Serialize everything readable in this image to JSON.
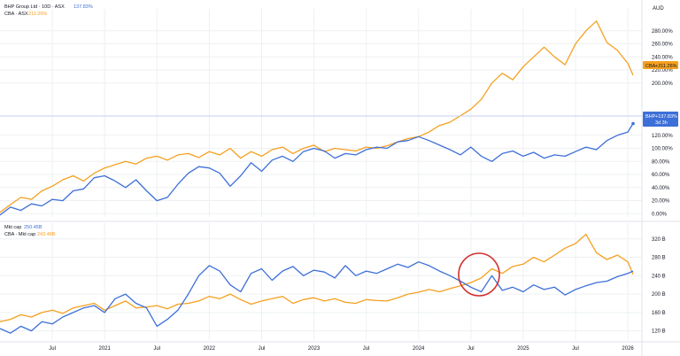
{
  "legend_top": {
    "bhp_label": "BHP Group Ltd · 10D · ASX",
    "bhp_value": "137.83%",
    "cba_label": "CBA · ASX",
    "cba_value": "211.26%"
  },
  "legend_bottom": {
    "bhp_label": "Mkt cap",
    "bhp_value": "250.45B",
    "cba_label": "CBA · Mkt cap",
    "cba_value": "243.46B"
  },
  "price_tags": {
    "cba_name": "CBA",
    "cba_value": "+211.26%",
    "bhp_name": "BHP",
    "bhp_value": "+137.83%",
    "bhp_time": "3d 3h"
  },
  "colors": {
    "bhp": "#3d6fd8",
    "cba": "#f5a01f",
    "grid": "#eef0f3",
    "highlight_circle": "#d32f2f",
    "text": "#131722"
  },
  "chart_data": [
    {
      "type": "line",
      "title": "",
      "unit_label": "AUD",
      "x_tick_labels": [
        "Jul",
        "2021",
        "Jul",
        "2022",
        "Jul",
        "2023",
        "Jul",
        "2024",
        "Jul",
        "2025",
        "Jul",
        "2026"
      ],
      "x_tick_dates": [
        2020.5,
        2021.0,
        2021.5,
        2022.0,
        2022.5,
        2023.0,
        2023.5,
        2024.0,
        2024.5,
        2025.0,
        2025.5,
        2026.0
      ],
      "xlim": [
        2020.0,
        2026.05
      ],
      "y_ticks": [
        0,
        20,
        40,
        60,
        80,
        100,
        120,
        200,
        220,
        240,
        260,
        280
      ],
      "y_tick_labels": [
        "0.00%",
        "20.00%",
        "40.00%",
        "60.00%",
        "80.00%",
        "100.00%",
        "120.00%",
        "200.00%",
        "220.00%",
        "240.00%",
        "260.00%",
        "280.00%"
      ],
      "ylim": [
        -5,
        300
      ],
      "grid": true,
      "legend_position": "top-left",
      "series": [
        {
          "name": "CBA",
          "color": "#f5a01f",
          "x": [
            2020.0,
            2020.1,
            2020.2,
            2020.3,
            2020.4,
            2020.5,
            2020.6,
            2020.7,
            2020.8,
            2020.9,
            2021.0,
            2021.1,
            2021.2,
            2021.3,
            2021.4,
            2021.5,
            2021.6,
            2021.7,
            2021.8,
            2021.9,
            2022.0,
            2022.1,
            2022.2,
            2022.3,
            2022.4,
            2022.5,
            2022.6,
            2022.7,
            2022.8,
            2022.9,
            2023.0,
            2023.1,
            2023.2,
            2023.3,
            2023.4,
            2023.5,
            2023.6,
            2023.7,
            2023.8,
            2023.9,
            2024.0,
            2024.1,
            2024.2,
            2024.3,
            2024.4,
            2024.5,
            2024.6,
            2024.7,
            2024.8,
            2024.9,
            2025.0,
            2025.1,
            2025.2,
            2025.3,
            2025.4,
            2025.5,
            2025.6,
            2025.7,
            2025.8,
            2025.9,
            2026.0,
            2026.05
          ],
          "y": [
            2,
            14,
            25,
            22,
            35,
            42,
            52,
            58,
            50,
            62,
            70,
            75,
            80,
            76,
            85,
            88,
            82,
            90,
            92,
            86,
            95,
            90,
            100,
            85,
            95,
            88,
            98,
            102,
            92,
            100,
            105,
            95,
            100,
            98,
            96,
            102,
            100,
            104,
            110,
            115,
            118,
            125,
            135,
            140,
            150,
            160,
            175,
            200,
            215,
            205,
            225,
            240,
            255,
            240,
            228,
            260,
            280,
            295,
            262,
            250,
            230,
            212
          ],
          "labels": [
            "0%",
            "+211.26%"
          ]
        },
        {
          "name": "BHP",
          "color": "#3d6fd8",
          "x": [
            2020.0,
            2020.1,
            2020.2,
            2020.3,
            2020.4,
            2020.5,
            2020.6,
            2020.7,
            2020.8,
            2020.9,
            2021.0,
            2021.1,
            2021.2,
            2021.3,
            2021.4,
            2021.5,
            2021.6,
            2021.7,
            2021.8,
            2021.9,
            2022.0,
            2022.1,
            2022.2,
            2022.3,
            2022.4,
            2022.5,
            2022.6,
            2022.7,
            2022.8,
            2022.9,
            2023.0,
            2023.1,
            2023.2,
            2023.3,
            2023.4,
            2023.5,
            2023.6,
            2023.7,
            2023.8,
            2023.9,
            2024.0,
            2024.1,
            2024.2,
            2024.3,
            2024.4,
            2024.5,
            2024.6,
            2024.7,
            2024.8,
            2024.9,
            2025.0,
            2025.1,
            2025.2,
            2025.3,
            2025.4,
            2025.5,
            2025.6,
            2025.7,
            2025.8,
            2025.9,
            2026.0,
            2026.05
          ],
          "y": [
            -2,
            10,
            5,
            15,
            12,
            22,
            20,
            35,
            38,
            55,
            58,
            50,
            40,
            52,
            35,
            20,
            25,
            45,
            62,
            72,
            70,
            62,
            42,
            58,
            78,
            65,
            82,
            88,
            80,
            95,
            100,
            96,
            85,
            92,
            90,
            98,
            102,
            100,
            110,
            112,
            118,
            112,
            105,
            98,
            90,
            102,
            88,
            80,
            92,
            96,
            88,
            94,
            85,
            90,
            88,
            95,
            102,
            98,
            112,
            120,
            125,
            138
          ]
        }
      ]
    },
    {
      "type": "line",
      "title": "",
      "x_tick_labels": [
        "Jul",
        "2021",
        "Jul",
        "2022",
        "Jul",
        "2023",
        "Jul",
        "2024",
        "Jul",
        "2025",
        "Jul",
        "2026"
      ],
      "x_tick_dates": [
        2020.5,
        2021.0,
        2021.5,
        2022.0,
        2022.5,
        2023.0,
        2023.5,
        2024.0,
        2024.5,
        2025.0,
        2025.5,
        2026.0
      ],
      "xlim": [
        2020.0,
        2026.05
      ],
      "y_ticks": [
        120,
        160,
        200,
        240,
        280,
        320
      ],
      "y_tick_labels": [
        "120 B",
        "160 B",
        "200 B",
        "240 B",
        "280 B",
        "320 B"
      ],
      "ylim": [
        100,
        335
      ],
      "grid": true,
      "legend_position": "top-left",
      "annotation": "circle highlighting late 2024 crossover",
      "series": [
        {
          "name": "Mkt cap",
          "color": "#3d6fd8",
          "x": [
            2020.0,
            2020.1,
            2020.2,
            2020.3,
            2020.4,
            2020.5,
            2020.6,
            2020.7,
            2020.8,
            2020.9,
            2021.0,
            2021.1,
            2021.2,
            2021.3,
            2021.4,
            2021.5,
            2021.6,
            2021.7,
            2021.8,
            2021.9,
            2022.0,
            2022.1,
            2022.2,
            2022.3,
            2022.4,
            2022.5,
            2022.6,
            2022.7,
            2022.8,
            2022.9,
            2023.0,
            2023.1,
            2023.2,
            2023.3,
            2023.4,
            2023.5,
            2023.6,
            2023.7,
            2023.8,
            2023.9,
            2024.0,
            2024.1,
            2024.2,
            2024.3,
            2024.4,
            2024.5,
            2024.6,
            2024.7,
            2024.8,
            2024.9,
            2025.0,
            2025.1,
            2025.2,
            2025.3,
            2025.4,
            2025.5,
            2025.6,
            2025.7,
            2025.8,
            2025.9,
            2026.0,
            2026.05
          ],
          "y": [
            125,
            115,
            130,
            120,
            140,
            135,
            150,
            160,
            170,
            175,
            160,
            190,
            200,
            180,
            170,
            130,
            145,
            165,
            200,
            240,
            262,
            250,
            220,
            205,
            245,
            255,
            230,
            250,
            260,
            240,
            252,
            248,
            235,
            262,
            240,
            250,
            245,
            255,
            265,
            258,
            270,
            262,
            250,
            240,
            228,
            215,
            205,
            240,
            208,
            215,
            205,
            220,
            210,
            215,
            198,
            210,
            218,
            225,
            228,
            238,
            245,
            250
          ]
        },
        {
          "name": "CBA · Mkt cap",
          "color": "#f5a01f",
          "x": [
            2020.0,
            2020.1,
            2020.2,
            2020.3,
            2020.4,
            2020.5,
            2020.6,
            2020.7,
            2020.8,
            2020.9,
            2021.0,
            2021.1,
            2021.2,
            2021.3,
            2021.4,
            2021.5,
            2021.6,
            2021.7,
            2021.8,
            2021.9,
            2022.0,
            2022.1,
            2022.2,
            2022.3,
            2022.4,
            2022.5,
            2022.6,
            2022.7,
            2022.8,
            2022.9,
            2023.0,
            2023.1,
            2023.2,
            2023.3,
            2023.4,
            2023.5,
            2023.6,
            2023.7,
            2023.8,
            2023.9,
            2024.0,
            2024.1,
            2024.2,
            2024.3,
            2024.4,
            2024.5,
            2024.6,
            2024.7,
            2024.8,
            2024.9,
            2025.0,
            2025.1,
            2025.2,
            2025.3,
            2025.4,
            2025.5,
            2025.6,
            2025.7,
            2025.8,
            2025.9,
            2026.0,
            2026.05
          ],
          "y": [
            140,
            145,
            155,
            150,
            160,
            165,
            158,
            170,
            175,
            180,
            165,
            175,
            185,
            170,
            172,
            175,
            168,
            178,
            180,
            185,
            195,
            190,
            200,
            188,
            178,
            185,
            190,
            195,
            180,
            188,
            192,
            185,
            190,
            182,
            180,
            188,
            186,
            185,
            192,
            200,
            204,
            210,
            205,
            212,
            218,
            225,
            235,
            255,
            245,
            260,
            265,
            280,
            270,
            285,
            300,
            310,
            330,
            290,
            275,
            285,
            270,
            243
          ]
        }
      ]
    }
  ]
}
